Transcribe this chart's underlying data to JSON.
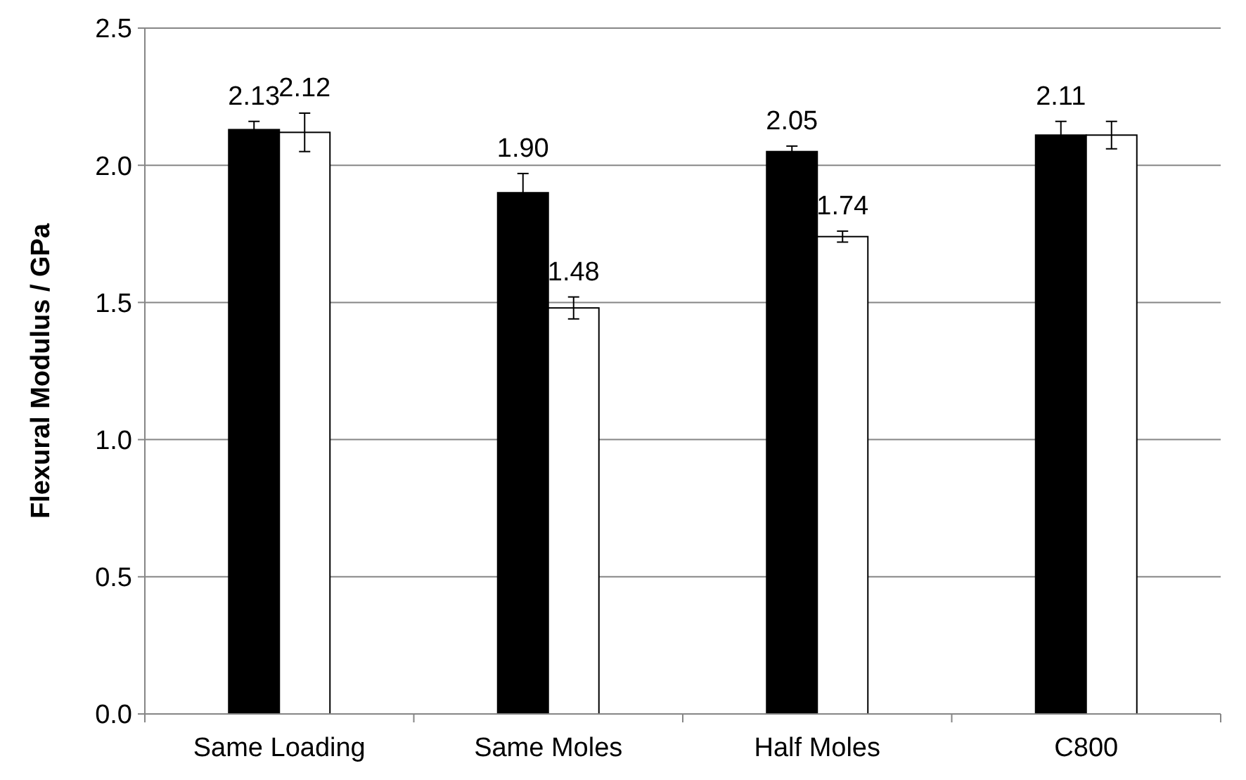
{
  "chart_data": {
    "type": "bar",
    "ylabel": "Flexural Modulus / GPa",
    "categories": [
      "Same Loading",
      "Same Moles",
      "Half Moles",
      "C800"
    ],
    "series": [
      {
        "color": "#000000",
        "values": [
          2.13,
          1.9,
          2.05,
          2.11
        ],
        "errors": [
          0.03,
          0.07,
          0.02,
          0.05
        ],
        "value_labels": [
          "2.13",
          "1.90",
          "2.05",
          "2.11"
        ]
      },
      {
        "color": "#ffffff",
        "values": [
          2.12,
          1.48,
          1.74,
          2.11
        ],
        "errors": [
          0.07,
          0.04,
          0.02,
          0.05
        ],
        "value_labels": [
          "2.12",
          "1.48",
          "1.74",
          null
        ]
      }
    ],
    "ylim": [
      0,
      2.5
    ],
    "yticks": [
      {
        "value": 0,
        "label": "0.0"
      },
      {
        "value": 0.5,
        "label": "0.5"
      },
      {
        "value": 1,
        "label": "1.0"
      },
      {
        "value": 1.5,
        "label": "1.5"
      },
      {
        "value": 2,
        "label": "2.0"
      },
      {
        "value": 2.5,
        "label": "2.5"
      }
    ],
    "grid": "y"
  }
}
